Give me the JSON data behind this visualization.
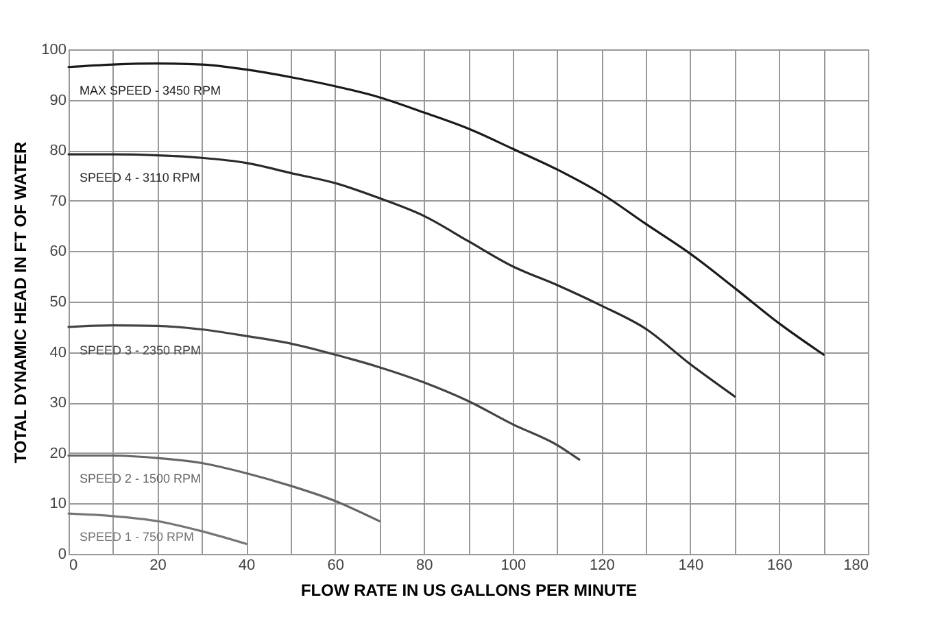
{
  "chart_data": {
    "type": "line",
    "xlabel": "FLOW RATE IN US GALLONS PER MINUTE",
    "ylabel": "TOTAL DYNAMIC HEAD IN FT OF WATER",
    "xlim": [
      0,
      180
    ],
    "ylim": [
      0,
      100
    ],
    "xticks": [
      0,
      {
        "value": 10,
        "label": null
      },
      20,
      {
        "value": 30,
        "label": null
      },
      40,
      {
        "value": 50,
        "label": null
      },
      60,
      {
        "value": 70,
        "label": null
      },
      80,
      {
        "value": 90,
        "label": null
      },
      100,
      {
        "value": 110,
        "label": null
      },
      120,
      {
        "value": 130,
        "label": null
      },
      140,
      {
        "value": 150,
        "label": null
      },
      160,
      {
        "value": 170,
        "label": null
      },
      180
    ],
    "yticks": [
      0,
      10,
      20,
      30,
      40,
      50,
      60,
      70,
      80,
      90,
      100
    ],
    "grid": true,
    "legend": false,
    "marker": "none",
    "line_style": "solid",
    "series": [
      {
        "name": "MAX SPEED - 3450 RPM",
        "color": "#1a1a1a",
        "x": [
          0,
          10,
          20,
          30,
          40,
          50,
          60,
          70,
          80,
          90,
          100,
          110,
          120,
          130,
          140,
          150,
          160,
          170
        ],
        "values": [
          96.5,
          97,
          97.2,
          97,
          96,
          94.5,
          92.7,
          90.5,
          87.5,
          84.3,
          80.3,
          76.2,
          71.4,
          65.4,
          59.5,
          52.7,
          45.7,
          39.5
        ]
      },
      {
        "name": "SPEED 4 - 3110 RPM",
        "color": "#2a2a2a",
        "x": [
          0,
          10,
          20,
          30,
          40,
          50,
          60,
          70,
          80,
          90,
          100,
          110,
          120,
          130,
          140,
          150
        ],
        "values": [
          79.2,
          79.2,
          79,
          78.5,
          77.5,
          75.5,
          73.5,
          70.5,
          67,
          62,
          57,
          53.3,
          49.2,
          44.6,
          37.6,
          31.2
        ]
      },
      {
        "name": "SPEED 3 - 2350 RPM",
        "color": "#444444",
        "x": [
          0,
          10,
          20,
          30,
          40,
          50,
          60,
          70,
          80,
          90,
          100,
          110,
          115
        ],
        "values": [
          45,
          45.3,
          45.2,
          44.5,
          43.2,
          41.7,
          39.5,
          37,
          34,
          30.3,
          25.7,
          21.6,
          18.7
        ]
      },
      {
        "name": "SPEED 2 - 1500 RPM",
        "color": "#666666",
        "x": [
          0,
          10,
          20,
          30,
          40,
          50,
          60,
          70
        ],
        "values": [
          19.5,
          19.5,
          19,
          18,
          16,
          13.5,
          10.5,
          6.5
        ]
      },
      {
        "name": "SPEED 1 - 750 RPM",
        "color": "#777777",
        "x": [
          0,
          10,
          20,
          30,
          40
        ],
        "values": [
          8,
          7.5,
          6.5,
          4.5,
          2
        ]
      }
    ]
  }
}
